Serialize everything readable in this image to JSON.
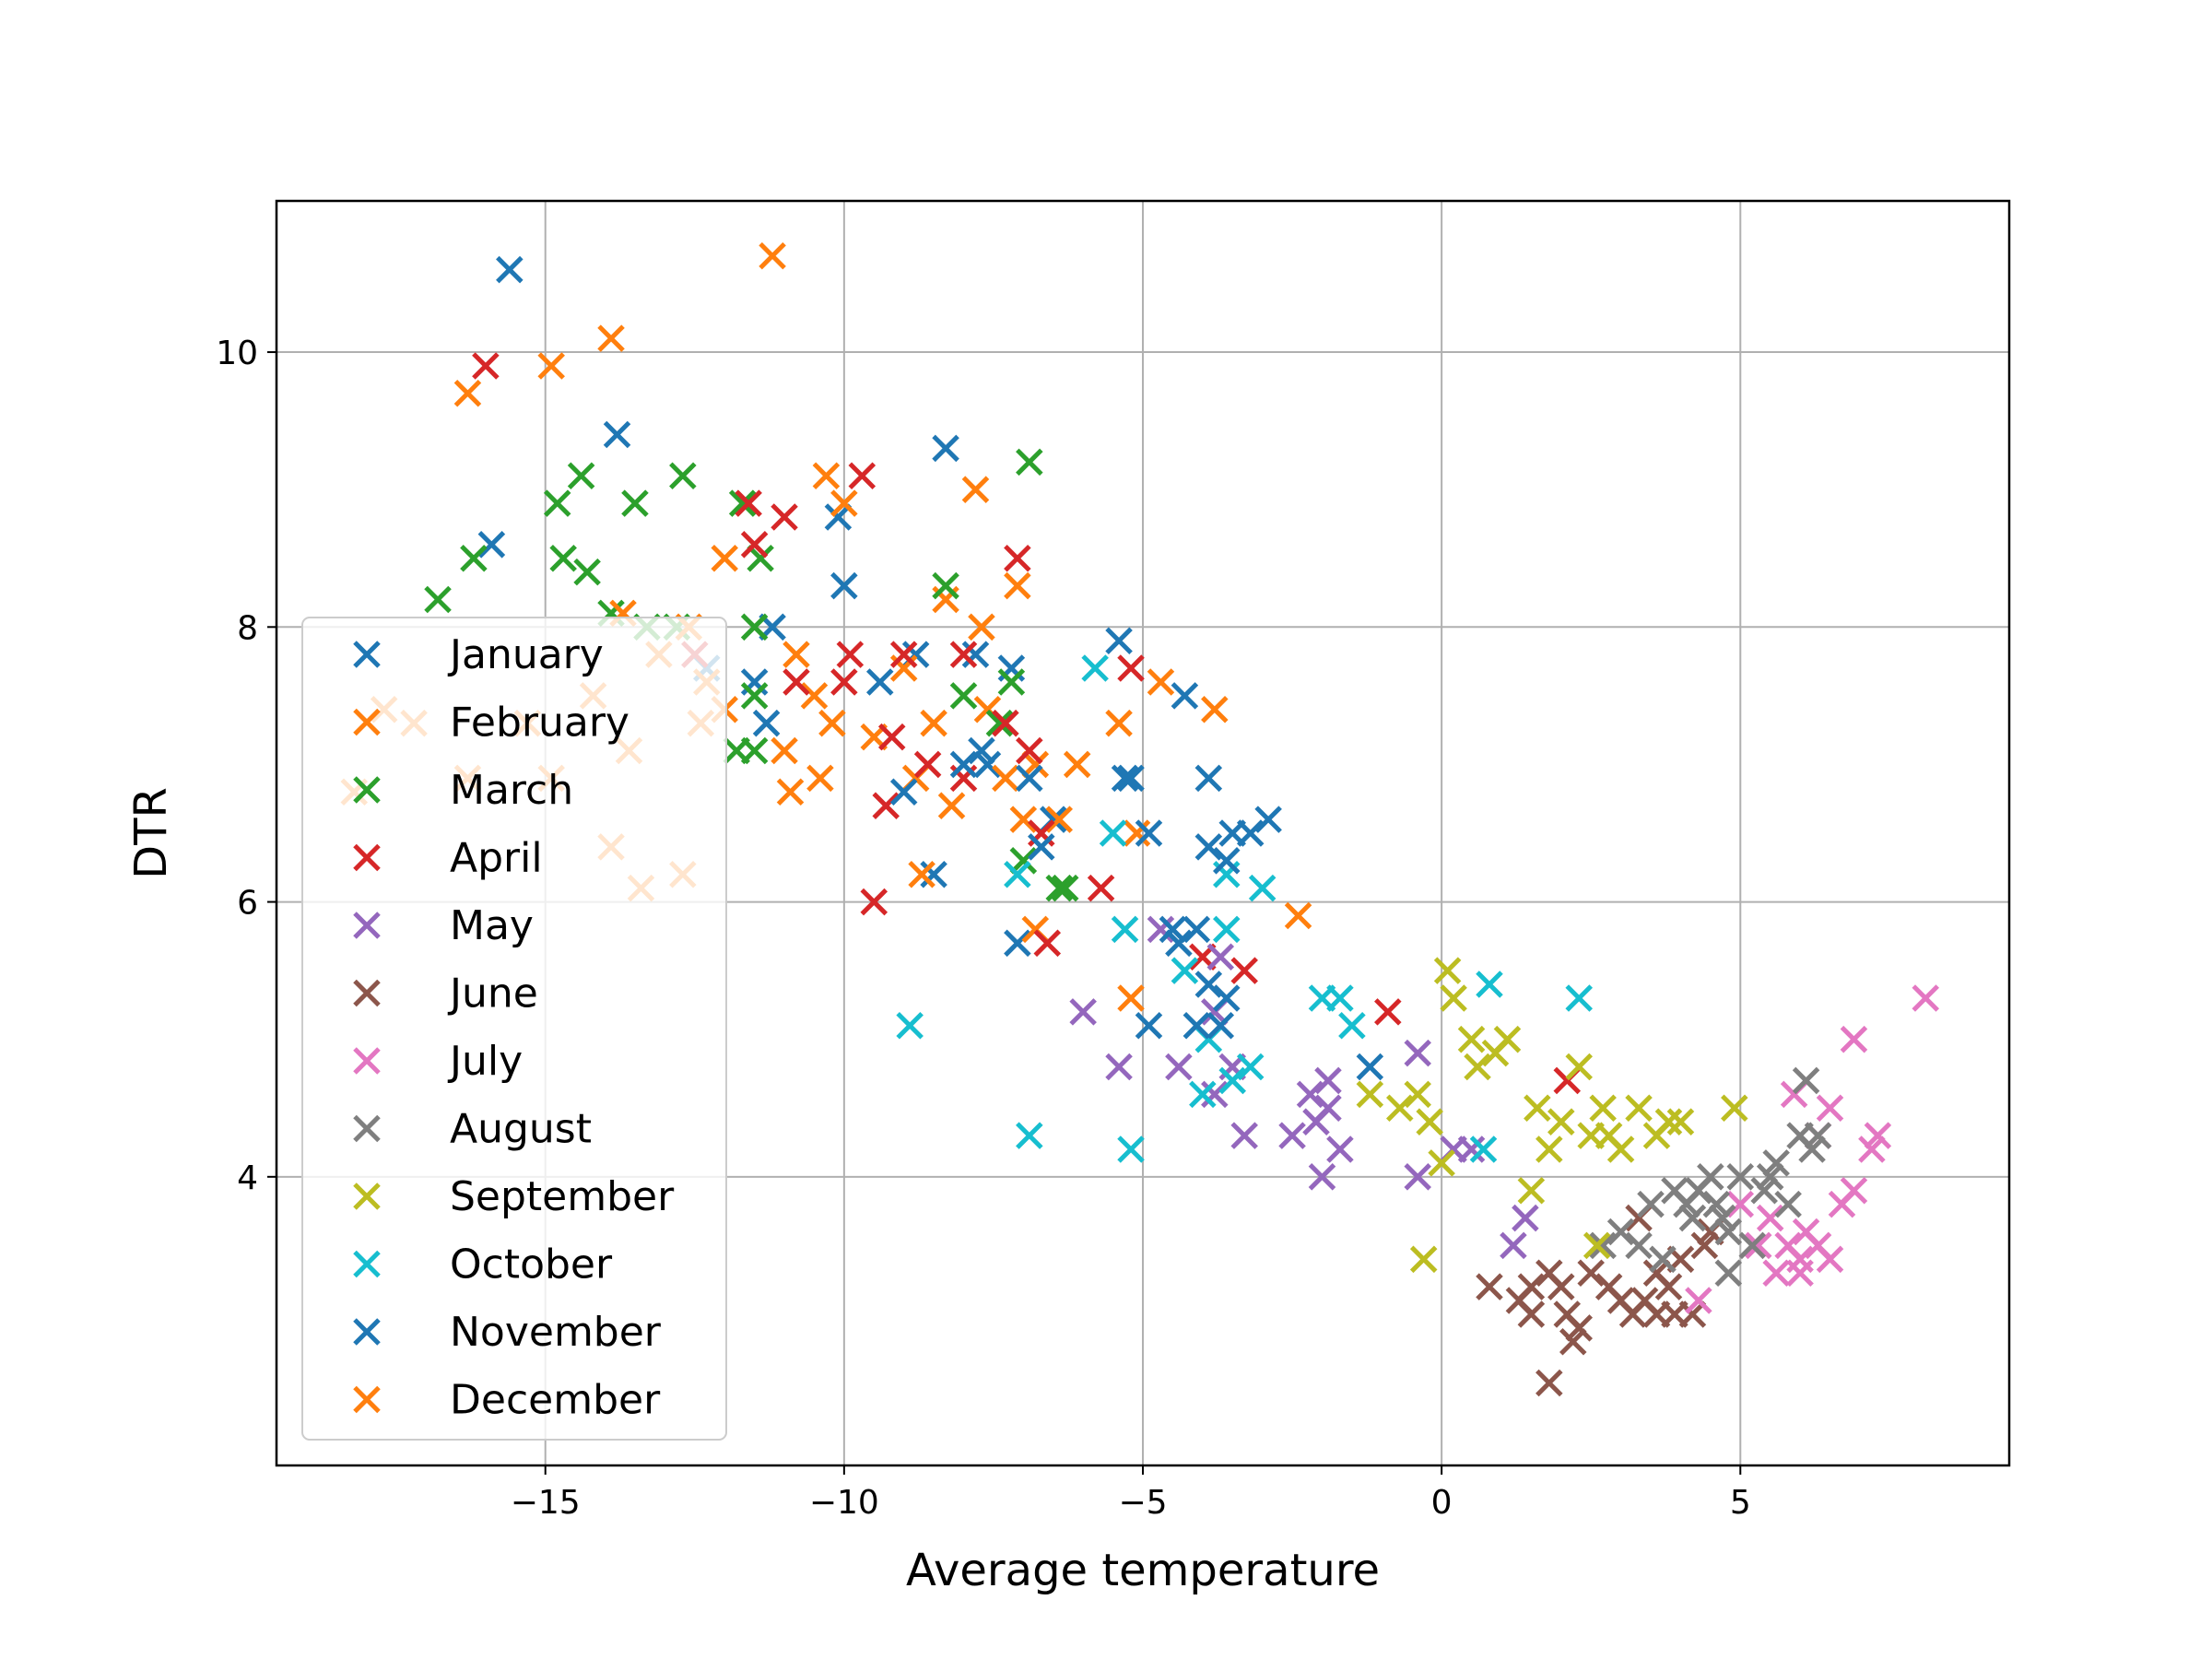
{
  "chart_data": {
    "type": "scatter",
    "title": "",
    "xlabel": "Average temperature",
    "ylabel": "DTR",
    "xlim": [
      -19.5,
      9.5
    ],
    "ylim": [
      1.9,
      11.1
    ],
    "xticks": [
      -15,
      -10,
      -5,
      0,
      5
    ],
    "xtick_labels": [
      "−15",
      "−10",
      "−5",
      "0",
      "5"
    ],
    "yticks": [
      4,
      6,
      8,
      10
    ],
    "ytick_labels": [
      "4",
      "6",
      "8",
      "10"
    ],
    "grid": true,
    "marker": "x",
    "legend_position": "center-left",
    "series": [
      {
        "name": "January",
        "color": "#1f77b4",
        "points": [
          [
            -15.6,
            10.6
          ],
          [
            -13.8,
            9.4
          ],
          [
            -15.9,
            8.6
          ],
          [
            -11.5,
            7.6
          ],
          [
            -11.2,
            8.0
          ],
          [
            -12.3,
            7.7
          ],
          [
            -11.3,
            7.3
          ],
          [
            -10.1,
            8.8
          ],
          [
            -10.0,
            8.3
          ],
          [
            -9.4,
            7.6
          ],
          [
            -8.8,
            7.8
          ],
          [
            -8.3,
            9.3
          ],
          [
            -7.8,
            7.8
          ],
          [
            -7.2,
            7.7
          ],
          [
            -7.6,
            7.0
          ],
          [
            -8.5,
            6.2
          ],
          [
            -7.1,
            5.7
          ],
          [
            -6.5,
            6.6
          ],
          [
            -5.4,
            7.9
          ],
          [
            -4.3,
            7.5
          ],
          [
            -5.2,
            6.9
          ],
          [
            -3.9,
            6.4
          ],
          [
            -3.5,
            6.5
          ]
        ]
      },
      {
        "name": "February",
        "color": "#ff7f0e",
        "points": [
          [
            -16.3,
            9.7
          ],
          [
            -14.9,
            9.9
          ],
          [
            -13.9,
            10.1
          ],
          [
            -11.2,
            10.7
          ],
          [
            -10.3,
            9.1
          ],
          [
            -10.0,
            8.9
          ],
          [
            -12.0,
            8.5
          ],
          [
            -8.3,
            8.2
          ],
          [
            -7.8,
            9.0
          ],
          [
            -7.7,
            8.0
          ],
          [
            -7.1,
            8.3
          ],
          [
            -10.8,
            7.8
          ],
          [
            -10.5,
            7.5
          ],
          [
            -10.2,
            7.3
          ],
          [
            -9.5,
            7.2
          ],
          [
            -9.0,
            7.7
          ],
          [
            -8.5,
            7.3
          ],
          [
            -8.8,
            6.9
          ],
          [
            -8.2,
            6.7
          ],
          [
            -7.6,
            7.4
          ],
          [
            -7.3,
            6.9
          ],
          [
            -7.0,
            6.6
          ],
          [
            -6.8,
            7.0
          ],
          [
            -6.4,
            6.6
          ],
          [
            -6.1,
            7.0
          ],
          [
            -5.4,
            7.3
          ],
          [
            -4.7,
            7.6
          ],
          [
            -3.8,
            7.4
          ],
          [
            -10.9,
            6.8
          ],
          [
            -10.4,
            6.9
          ],
          [
            -11.0,
            7.1
          ],
          [
            -8.7,
            6.2
          ],
          [
            -6.8,
            5.8
          ],
          [
            -5.1,
            6.5
          ],
          [
            -5.2,
            5.3
          ],
          [
            -2.4,
            5.9
          ]
        ]
      },
      {
        "name": "March",
        "color": "#2ca02c",
        "points": [
          [
            -16.8,
            8.2
          ],
          [
            -16.2,
            8.5
          ],
          [
            -14.8,
            8.9
          ],
          [
            -14.4,
            9.1
          ],
          [
            -13.5,
            8.9
          ],
          [
            -12.7,
            9.1
          ],
          [
            -11.7,
            8.9
          ],
          [
            -11.4,
            8.5
          ],
          [
            -14.7,
            8.5
          ],
          [
            -14.3,
            8.4
          ],
          [
            -13.9,
            8.1
          ],
          [
            -13.3,
            8.0
          ],
          [
            -12.8,
            8.0
          ],
          [
            -11.5,
            8.0
          ],
          [
            -11.5,
            7.5
          ],
          [
            -11.8,
            7.1
          ],
          [
            -11.5,
            7.1
          ],
          [
            -8.3,
            8.3
          ],
          [
            -8.0,
            7.5
          ],
          [
            -7.4,
            7.3
          ],
          [
            -6.9,
            9.2
          ],
          [
            -7.2,
            7.6
          ],
          [
            -7.0,
            6.3
          ],
          [
            -6.4,
            6.1
          ],
          [
            -6.3,
            6.1
          ]
        ]
      },
      {
        "name": "April",
        "color": "#d62728",
        "points": [
          [
            -16.0,
            9.9
          ],
          [
            -11.6,
            8.9
          ],
          [
            -11.0,
            8.8
          ],
          [
            -11.5,
            8.6
          ],
          [
            -9.7,
            9.1
          ],
          [
            -12.5,
            7.8
          ],
          [
            -10.8,
            7.6
          ],
          [
            -10.0,
            7.6
          ],
          [
            -9.9,
            7.8
          ],
          [
            -9.0,
            7.8
          ],
          [
            -8.0,
            7.8
          ],
          [
            -9.2,
            7.2
          ],
          [
            -8.6,
            7.0
          ],
          [
            -8.0,
            6.9
          ],
          [
            -7.3,
            7.3
          ],
          [
            -6.9,
            7.1
          ],
          [
            -9.3,
            6.7
          ],
          [
            -9.5,
            6.0
          ],
          [
            -7.1,
            8.5
          ],
          [
            -6.7,
            6.5
          ],
          [
            -6.6,
            5.7
          ],
          [
            -5.7,
            6.1
          ],
          [
            -5.2,
            7.7
          ],
          [
            -4.0,
            5.6
          ],
          [
            -3.3,
            5.5
          ],
          [
            -0.9,
            5.2
          ],
          [
            2.1,
            4.7
          ]
        ]
      },
      {
        "name": "May",
        "color": "#9467bd",
        "points": [
          [
            -6.0,
            5.2
          ],
          [
            -5.4,
            4.8
          ],
          [
            -4.7,
            5.8
          ],
          [
            -4.4,
            4.8
          ],
          [
            -3.8,
            5.2
          ],
          [
            -3.7,
            5.6
          ],
          [
            -3.8,
            4.6
          ],
          [
            -3.5,
            4.8
          ],
          [
            -3.3,
            4.3
          ],
          [
            -2.5,
            4.3
          ],
          [
            -2.2,
            4.6
          ],
          [
            -2.1,
            4.4
          ],
          [
            -1.9,
            4.5
          ],
          [
            -2.0,
            4.0
          ],
          [
            -1.7,
            4.2
          ],
          [
            -1.9,
            4.7
          ],
          [
            -0.4,
            4.9
          ],
          [
            -0.4,
            4.0
          ],
          [
            0.2,
            4.2
          ],
          [
            0.5,
            4.2
          ],
          [
            1.4,
            3.7
          ],
          [
            1.2,
            3.5
          ]
        ]
      },
      {
        "name": "June",
        "color": "#8c564b",
        "points": [
          [
            0.8,
            3.2
          ],
          [
            1.3,
            3.1
          ],
          [
            1.5,
            3.0
          ],
          [
            1.8,
            3.3
          ],
          [
            2.0,
            3.2
          ],
          [
            2.1,
            3.0
          ],
          [
            2.3,
            2.9
          ],
          [
            2.2,
            2.8
          ],
          [
            2.5,
            3.3
          ],
          [
            2.8,
            3.2
          ],
          [
            3.0,
            3.1
          ],
          [
            3.2,
            3.0
          ],
          [
            3.4,
            3.1
          ],
          [
            3.6,
            3.0
          ],
          [
            3.8,
            3.2
          ],
          [
            3.9,
            3.0
          ],
          [
            4.0,
            3.4
          ],
          [
            4.2,
            3.0
          ],
          [
            4.4,
            3.5
          ],
          [
            4.5,
            3.6
          ],
          [
            3.6,
            3.3
          ],
          [
            3.3,
            3.7
          ],
          [
            1.8,
            2.5
          ],
          [
            1.5,
            3.2
          ]
        ]
      },
      {
        "name": "July",
        "color": "#e377c2",
        "points": [
          [
            4.3,
            3.1
          ],
          [
            5.0,
            3.8
          ],
          [
            5.3,
            3.5
          ],
          [
            5.5,
            3.7
          ],
          [
            5.6,
            3.3
          ],
          [
            5.8,
            3.5
          ],
          [
            6.0,
            3.4
          ],
          [
            6.1,
            3.6
          ],
          [
            6.3,
            3.5
          ],
          [
            6.5,
            3.4
          ],
          [
            6.7,
            3.8
          ],
          [
            6.9,
            3.9
          ],
          [
            7.2,
            4.2
          ],
          [
            7.3,
            4.3
          ],
          [
            6.9,
            5.0
          ],
          [
            8.1,
            5.3
          ],
          [
            6.5,
            4.5
          ],
          [
            5.9,
            4.6
          ],
          [
            6.3,
            4.3
          ],
          [
            6.0,
            3.3
          ]
        ]
      },
      {
        "name": "August",
        "color": "#7f7f7f",
        "points": [
          [
            2.7,
            3.5
          ],
          [
            3.0,
            3.6
          ],
          [
            3.3,
            3.5
          ],
          [
            3.5,
            3.8
          ],
          [
            3.7,
            3.4
          ],
          [
            3.9,
            3.9
          ],
          [
            4.1,
            3.8
          ],
          [
            4.2,
            3.7
          ],
          [
            4.3,
            3.9
          ],
          [
            4.5,
            4.0
          ],
          [
            4.6,
            3.8
          ],
          [
            4.7,
            3.7
          ],
          [
            4.8,
            3.6
          ],
          [
            5.0,
            4.0
          ],
          [
            5.2,
            3.5
          ],
          [
            5.4,
            3.9
          ],
          [
            5.5,
            4.0
          ],
          [
            5.6,
            4.1
          ],
          [
            5.8,
            3.8
          ],
          [
            6.0,
            4.3
          ],
          [
            6.1,
            4.7
          ],
          [
            6.3,
            4.3
          ],
          [
            6.2,
            4.2
          ],
          [
            4.8,
            3.3
          ]
        ]
      },
      {
        "name": "September",
        "color": "#bcbd22",
        "points": [
          [
            -0.3,
            3.4
          ],
          [
            -1.2,
            4.6
          ],
          [
            -0.7,
            4.5
          ],
          [
            -0.4,
            4.6
          ],
          [
            -0.2,
            4.4
          ],
          [
            0.0,
            4.1
          ],
          [
            0.1,
            5.5
          ],
          [
            0.2,
            5.3
          ],
          [
            0.5,
            5.0
          ],
          [
            0.6,
            4.8
          ],
          [
            0.9,
            4.9
          ],
          [
            1.1,
            5.0
          ],
          [
            1.6,
            4.5
          ],
          [
            1.8,
            4.2
          ],
          [
            2.0,
            4.4
          ],
          [
            2.3,
            4.8
          ],
          [
            2.5,
            4.3
          ],
          [
            2.7,
            4.5
          ],
          [
            2.8,
            4.3
          ],
          [
            3.0,
            4.2
          ],
          [
            3.3,
            4.5
          ],
          [
            3.6,
            4.3
          ],
          [
            3.8,
            4.4
          ],
          [
            4.0,
            4.4
          ],
          [
            4.9,
            4.5
          ],
          [
            2.6,
            3.5
          ],
          [
            1.5,
            3.9
          ]
        ]
      },
      {
        "name": "October",
        "color": "#17becf",
        "points": [
          [
            -8.9,
            5.1
          ],
          [
            -7.1,
            6.2
          ],
          [
            -6.9,
            4.3
          ],
          [
            -5.8,
            7.7
          ],
          [
            -5.5,
            6.5
          ],
          [
            -5.3,
            5.8
          ],
          [
            -5.2,
            4.2
          ],
          [
            -4.3,
            5.5
          ],
          [
            -3.9,
            5.0
          ],
          [
            -3.6,
            5.8
          ],
          [
            -3.5,
            4.7
          ],
          [
            -3.2,
            4.8
          ],
          [
            -3.0,
            6.1
          ],
          [
            -2.0,
            5.3
          ],
          [
            -1.7,
            5.3
          ],
          [
            -1.5,
            5.1
          ],
          [
            0.8,
            5.4
          ],
          [
            0.7,
            4.2
          ],
          [
            2.3,
            5.3
          ],
          [
            -3.6,
            6.2
          ],
          [
            -4.0,
            4.6
          ]
        ]
      },
      {
        "name": "November",
        "color": "#1f77b4",
        "points": [
          [
            -9.0,
            6.8
          ],
          [
            -8.0,
            7.0
          ],
          [
            -7.7,
            7.1
          ],
          [
            -6.9,
            6.9
          ],
          [
            -6.7,
            6.4
          ],
          [
            -5.3,
            6.9
          ],
          [
            -4.9,
            6.5
          ],
          [
            -4.9,
            5.1
          ],
          [
            -4.5,
            5.8
          ],
          [
            -4.1,
            5.8
          ],
          [
            -3.9,
            6.9
          ],
          [
            -3.6,
            5.3
          ],
          [
            -3.6,
            6.3
          ],
          [
            -3.2,
            6.5
          ],
          [
            -2.9,
            6.6
          ],
          [
            -1.2,
            4.8
          ],
          [
            -4.1,
            5.1
          ],
          [
            -3.9,
            5.4
          ],
          [
            -3.7,
            5.1
          ],
          [
            -4.4,
            5.7
          ]
        ]
      },
      {
        "name": "December",
        "color": "#ff7f0e",
        "points": [
          [
            -18.2,
            6.8
          ],
          [
            -17.7,
            7.4
          ],
          [
            -17.2,
            7.3
          ],
          [
            -16.3,
            6.9
          ],
          [
            -15.3,
            7.3
          ],
          [
            -14.9,
            6.9
          ],
          [
            -14.2,
            7.5
          ],
          [
            -13.9,
            6.4
          ],
          [
            -13.6,
            7.1
          ],
          [
            -13.4,
            6.1
          ],
          [
            -12.7,
            6.2
          ],
          [
            -13.7,
            8.1
          ],
          [
            -13.1,
            7.8
          ],
          [
            -12.3,
            7.6
          ],
          [
            -12.6,
            8.0
          ],
          [
            -12.0,
            7.4
          ],
          [
            -12.4,
            7.3
          ]
        ]
      }
    ]
  }
}
